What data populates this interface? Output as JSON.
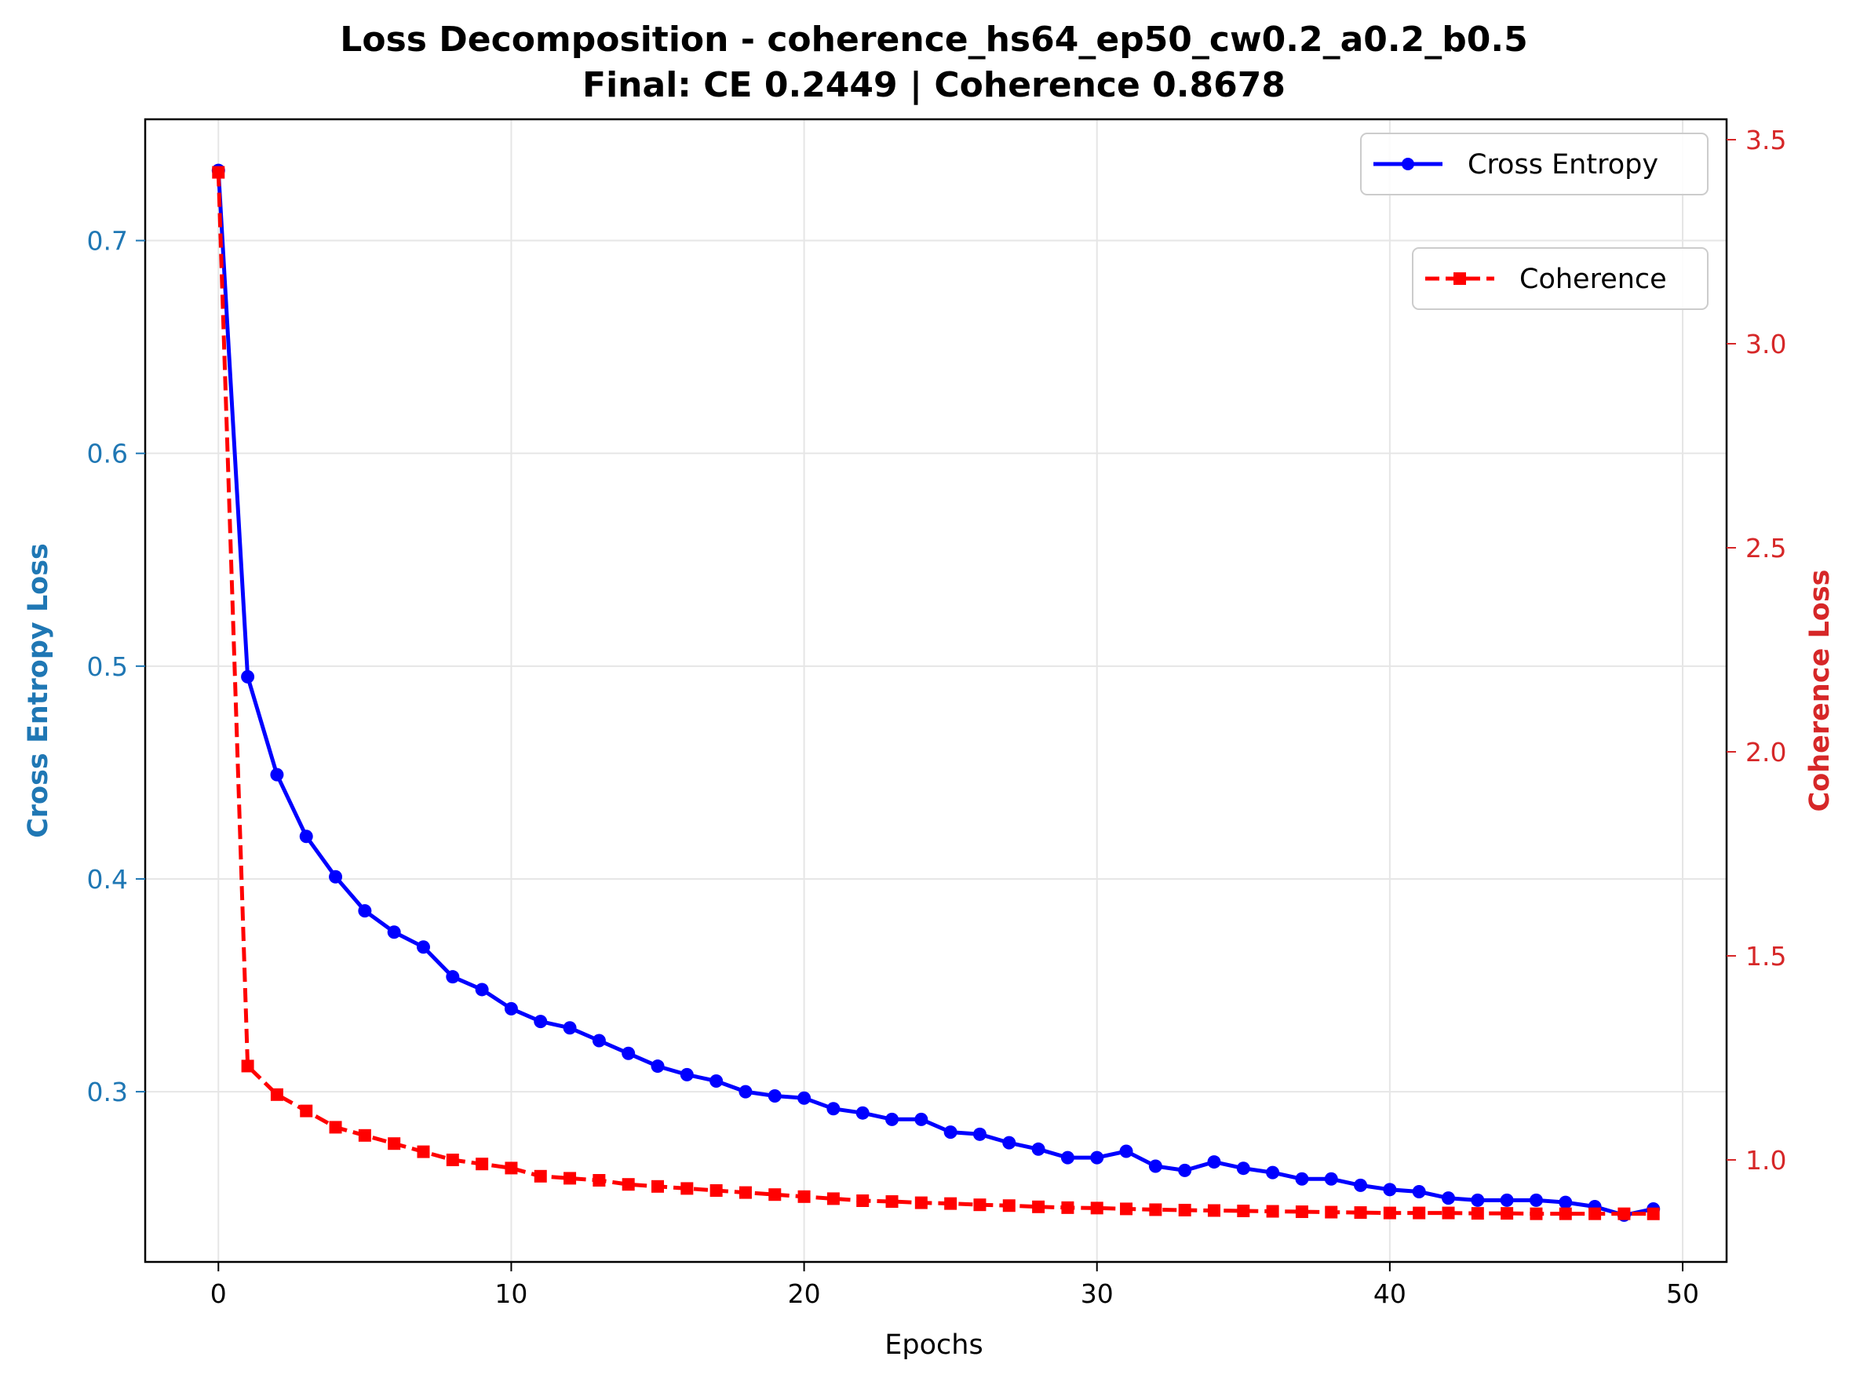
{
  "chart_data": {
    "type": "line",
    "title": "Loss Decomposition - coherence_hs64_ep50_cw0.2_a0.2_b0.5",
    "subtitle": "Final: CE 0.2449 | Coherence 0.8678",
    "xlabel": "Epochs",
    "ylabel_left": "Cross Entropy Loss",
    "ylabel_right": "Coherence Loss",
    "xlim": [
      -2.5,
      51.5
    ],
    "ylim_left": [
      0.22,
      0.757
    ],
    "ylim_right": [
      0.75,
      3.55
    ],
    "x_ticks": [
      0,
      10,
      20,
      30,
      40,
      50
    ],
    "y_ticks_left": [
      0.3,
      0.4,
      0.5,
      0.6,
      0.7
    ],
    "y_ticks_right": [
      1.0,
      1.5,
      2.0,
      2.5,
      3.0,
      3.5
    ],
    "x_tick_labels": [
      "0",
      "10",
      "20",
      "30",
      "40",
      "50"
    ],
    "y_tick_labels_left": [
      "0.3",
      "0.4",
      "0.5",
      "0.6",
      "0.7"
    ],
    "y_tick_labels_right": [
      "1.0",
      "1.5",
      "2.0",
      "2.5",
      "3.0",
      "3.5"
    ],
    "grid": true,
    "colors": {
      "left_axis": "#1f77b4",
      "right_axis": "#d62728",
      "cross_entropy": "#0000ff",
      "coherence": "#ff0000",
      "grid": "#e6e6e6"
    },
    "x": [
      0,
      1,
      2,
      3,
      4,
      5,
      6,
      7,
      8,
      9,
      10,
      11,
      12,
      13,
      14,
      15,
      16,
      17,
      18,
      19,
      20,
      21,
      22,
      23,
      24,
      25,
      26,
      27,
      28,
      29,
      30,
      31,
      32,
      33,
      34,
      35,
      36,
      37,
      38,
      39,
      40,
      41,
      42,
      43,
      44,
      45,
      46,
      47,
      48,
      49
    ],
    "series": [
      {
        "name": "Cross Entropy",
        "axis": "left",
        "style": "solid",
        "marker": "circle",
        "legend_position": "top-right",
        "values": [
          0.733,
          0.495,
          0.449,
          0.42,
          0.401,
          0.385,
          0.375,
          0.368,
          0.354,
          0.348,
          0.339,
          0.333,
          0.33,
          0.324,
          0.318,
          0.312,
          0.308,
          0.305,
          0.3,
          0.298,
          0.297,
          0.292,
          0.29,
          0.287,
          0.287,
          0.281,
          0.28,
          0.276,
          0.273,
          0.269,
          0.269,
          0.272,
          0.265,
          0.263,
          0.267,
          0.264,
          0.262,
          0.259,
          0.259,
          0.256,
          0.254,
          0.253,
          0.25,
          0.249,
          0.249,
          0.249,
          0.248,
          0.246,
          0.242,
          0.2449
        ]
      },
      {
        "name": "Coherence",
        "axis": "right",
        "style": "dashed",
        "marker": "square",
        "legend_position": "upper-right",
        "values": [
          3.42,
          1.23,
          1.16,
          1.12,
          1.08,
          1.06,
          1.04,
          1.02,
          1.0,
          0.99,
          0.98,
          0.96,
          0.955,
          0.95,
          0.94,
          0.935,
          0.93,
          0.925,
          0.92,
          0.915,
          0.91,
          0.905,
          0.9,
          0.898,
          0.895,
          0.893,
          0.89,
          0.888,
          0.885,
          0.883,
          0.882,
          0.88,
          0.878,
          0.877,
          0.876,
          0.875,
          0.874,
          0.873,
          0.872,
          0.871,
          0.87,
          0.87,
          0.87,
          0.869,
          0.869,
          0.868,
          0.868,
          0.868,
          0.868,
          0.8678
        ]
      }
    ]
  }
}
